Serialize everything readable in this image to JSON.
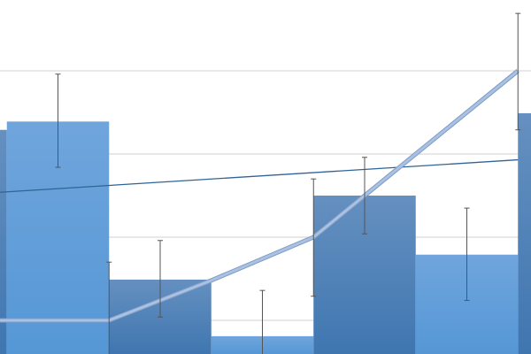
{
  "chart_data": {
    "type": "bar",
    "title": "",
    "xlabel": "",
    "ylabel": "",
    "ylim": [
      0.6,
      4.85
    ],
    "grid": true,
    "gridlines": [
      1,
      2,
      3,
      4
    ],
    "bars": {
      "positions": [
        0,
        1,
        2,
        3,
        4,
        5,
        6
      ],
      "values": [
        3.29,
        3.39,
        1.49,
        0.81,
        2.5,
        1.79,
        3.49
      ],
      "styles": [
        "dark",
        "light",
        "dark",
        "light",
        "dark",
        "light",
        "dark"
      ]
    },
    "error_bars": [
      {
        "x": 1,
        "low": 2.84,
        "high": 3.96
      },
      {
        "x": 1.5,
        "low": 0.3,
        "high": 1.7
      },
      {
        "x": 2,
        "low": 1.04,
        "high": 1.96
      },
      {
        "x": 3,
        "low": 0.4,
        "high": 1.36
      },
      {
        "x": 3.5,
        "low": 1.29,
        "high": 2.7
      },
      {
        "x": 4,
        "low": 2.04,
        "high": 2.96
      },
      {
        "x": 5,
        "low": 1.24,
        "high": 2.35
      },
      {
        "x": 5.5,
        "low": 3.29,
        "high": 4.69
      }
    ],
    "line": {
      "x": [
        0.4,
        1.5,
        2.5,
        3.5,
        5.5
      ],
      "y": [
        1.0,
        1.0,
        1.48,
        2.0,
        4.0
      ]
    },
    "trendline": {
      "x": [
        0.4,
        5.5
      ],
      "y": [
        2.54,
        2.93
      ]
    },
    "colors": {
      "bar_dark": "#4b7fb6",
      "bar_light": "#5b9bd8",
      "line": "#a9c1e2",
      "trendline": "#2e6496",
      "error_bar": "#555555",
      "grid": "#d9d9d9"
    }
  }
}
